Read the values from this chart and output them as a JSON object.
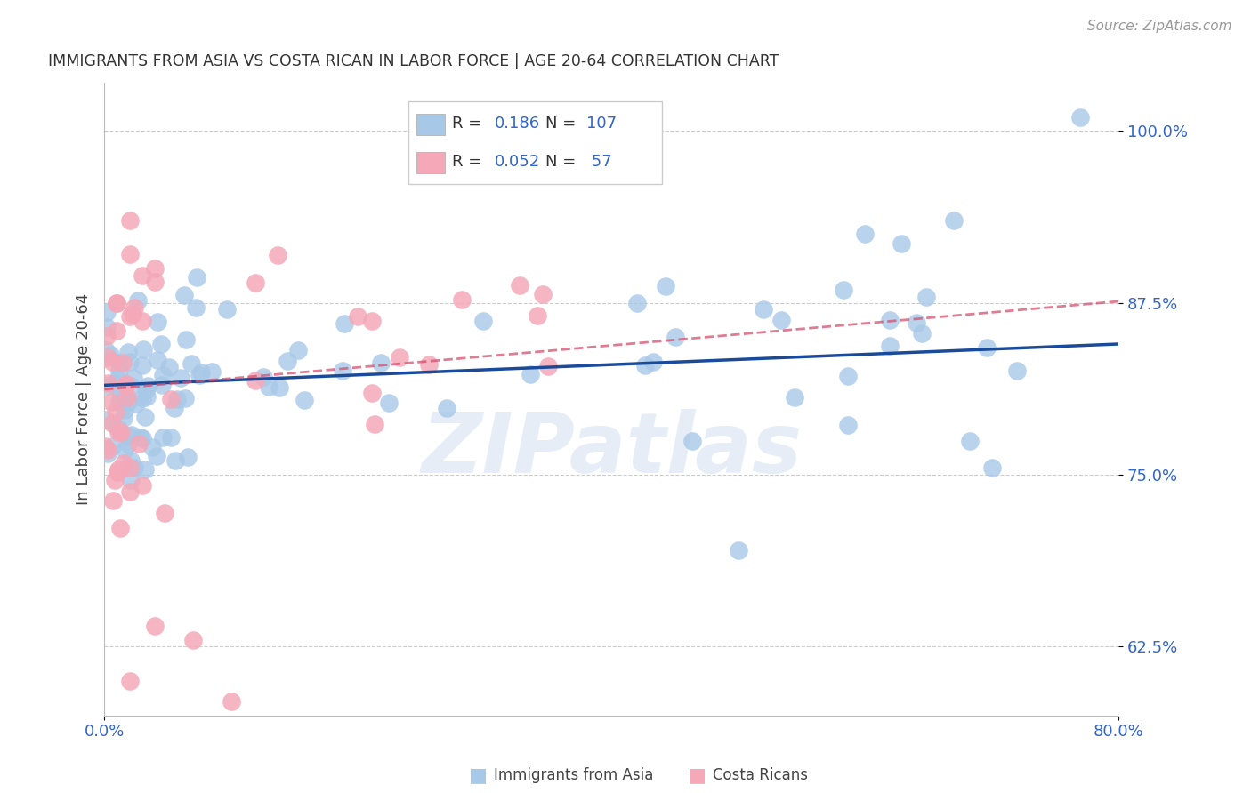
{
  "title": "IMMIGRANTS FROM ASIA VS COSTA RICAN IN LABOR FORCE | AGE 20-64 CORRELATION CHART",
  "source": "Source: ZipAtlas.com",
  "ylabel": "In Labor Force | Age 20-64",
  "xlim": [
    0.0,
    0.8
  ],
  "ylim": [
    0.575,
    1.035
  ],
  "yticks": [
    0.625,
    0.75,
    0.875,
    1.0
  ],
  "ytick_labels": [
    "62.5%",
    "75.0%",
    "87.5%",
    "100.0%"
  ],
  "legend_R_blue": "0.186",
  "legend_N_blue": "107",
  "legend_R_pink": "0.052",
  "legend_N_pink": "57",
  "blue_color": "#a8c8e8",
  "pink_color": "#f4a8b8",
  "blue_line_color": "#1a4a9a",
  "pink_line_color": "#d45070",
  "watermark": "ZIPatlas",
  "background_color": "#ffffff",
  "grid_color": "#cccccc",
  "axis_label_color": "#3366cc",
  "title_color": "#333333",
  "blue_line_x0": 0.0,
  "blue_line_y0": 0.815,
  "blue_line_x1": 0.8,
  "blue_line_y1": 0.845,
  "pink_line_x0": 0.0,
  "pink_line_y0": 0.812,
  "pink_line_x1": 0.8,
  "pink_line_y1": 0.876
}
